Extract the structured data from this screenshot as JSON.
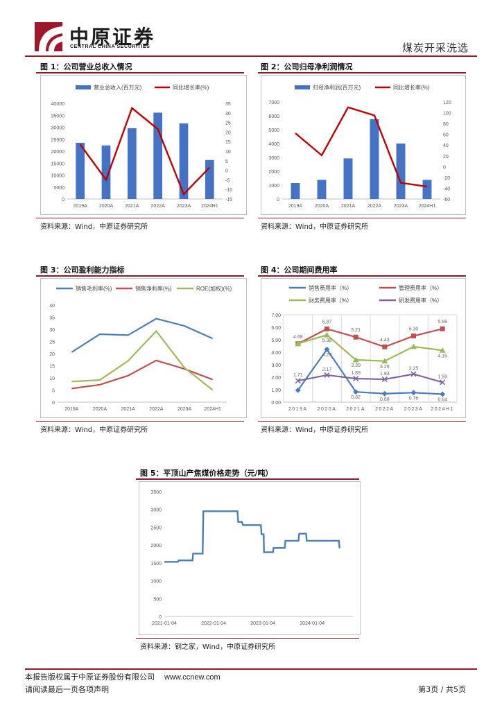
{
  "header": {
    "brand_cn": "中原证券",
    "brand_en": "CENTRAL CHINA SECURITIES",
    "section": "煤炭开采洗选",
    "accent": "#a0162b"
  },
  "figures": [
    {
      "title": "图 1：公司营业总收入情况",
      "source": "资料来源：Wind，中原证券研究所"
    },
    {
      "title": "图 2：公司归母净利润情况",
      "source": "资料来源：Wind，中原证券研究所"
    },
    {
      "title": "图 3：公司盈利能力指标",
      "source": "资料来源：Wind，中原证券研究所"
    },
    {
      "title": "图 4：公司期间费用率",
      "source": "资料来源：Wind，中原证券研究所"
    },
    {
      "title": "图 5：平顶山产焦煤价格走势（元/吨）",
      "source": "资料来源：钢之家，Wind，中原证券研究所"
    }
  ],
  "chart_data": [
    {
      "type": "bar",
      "categories": [
        "2019A",
        "2020A",
        "2021A",
        "2022A",
        "2023A",
        "2024H1"
      ],
      "series": [
        {
          "name": "营业总收入(百万元)",
          "axis": "left",
          "kind": "bar",
          "color": "#4472c4",
          "values": [
            23500,
            22400,
            29600,
            36100,
            31600,
            16300
          ]
        },
        {
          "name": "同比增长率(%)",
          "axis": "right",
          "kind": "line",
          "color": "#c00000",
          "values": [
            13.5,
            -5,
            32.5,
            21.5,
            -12.5,
            1.5
          ]
        }
      ],
      "ylim_left": [
        0,
        40000
      ],
      "ticks_left": [
        0,
        5000,
        10000,
        15000,
        20000,
        25000,
        30000,
        35000,
        40000
      ],
      "ylim_right": [
        -15,
        35
      ],
      "ticks_right": [
        -15,
        -10,
        -5,
        0,
        5,
        10,
        15,
        20,
        25,
        30,
        35
      ],
      "legend": "top"
    },
    {
      "type": "bar",
      "categories": [
        "2019A",
        "2020A",
        "2021A",
        "2022A",
        "2023A",
        "2024H1"
      ],
      "series": [
        {
          "name": "归母净利润(百万元)",
          "axis": "left",
          "kind": "bar",
          "color": "#4472c4",
          "values": [
            1150,
            1380,
            2930,
            5750,
            4000,
            1380
          ]
        },
        {
          "name": "同比增长率(%)",
          "axis": "right",
          "kind": "line",
          "color": "#c00000",
          "values": [
            62,
            21,
            110,
            95,
            -30,
            -37
          ]
        }
      ],
      "ylim_left": [
        0,
        7000
      ],
      "ticks_left": [
        0,
        1000,
        2000,
        3000,
        4000,
        5000,
        6000,
        7000
      ],
      "ylim_right": [
        -60,
        120
      ],
      "ticks_right": [
        -60,
        -40,
        -20,
        0,
        20,
        40,
        60,
        80,
        100,
        120
      ],
      "legend": "top"
    },
    {
      "type": "line",
      "categories": [
        "2019A",
        "2020A",
        "2021A",
        "2022A",
        "2023A",
        "2024H1"
      ],
      "series": [
        {
          "name": "销售毛利率(%)",
          "color": "#4a7ebb",
          "values": [
            20.6,
            28.0,
            27.6,
            34.4,
            31.4,
            26.2
          ]
        },
        {
          "name": "销售净利率(%)",
          "color": "#c0504d",
          "values": [
            5.6,
            7.2,
            10.9,
            17.2,
            13.7,
            9.3
          ]
        },
        {
          "name": "ROE(加权)(%)",
          "color": "#9bbb59",
          "values": [
            8.5,
            9.1,
            17.0,
            29.3,
            14.2,
            5.0
          ]
        }
      ],
      "ylim": [
        0,
        40
      ],
      "ticks": [
        0,
        5,
        10,
        15,
        20,
        25,
        30,
        35,
        40
      ],
      "legend": "top"
    },
    {
      "type": "line",
      "categories": [
        "2019A",
        "2020A",
        "2021A",
        "2022A",
        "2023A",
        "2024H1"
      ],
      "series": [
        {
          "name": "销售费用率（%）",
          "color": "#4a7ebb",
          "marker": "diamond",
          "values": [
            0.96,
            4.23,
            0.82,
            0.68,
            0.76,
            0.64
          ]
        },
        {
          "name": "管理费用率（%）",
          "color": "#c0504d",
          "marker": "square",
          "values": [
            4.68,
            5.87,
            5.21,
            4.43,
            5.3,
            5.88
          ]
        },
        {
          "name": "财务费用率（%）",
          "color": "#9bbb59",
          "marker": "triangle",
          "values": [
            4.7,
            5.38,
            3.39,
            3.29,
            4.45,
            4.15
          ]
        },
        {
          "name": "研发费用率（%）",
          "color": "#8064a2",
          "marker": "x",
          "values": [
            1.71,
            2.17,
            1.89,
            1.83,
            2.25,
            1.59
          ]
        }
      ],
      "labels": [
        {
          "text": "4.68",
          "series": 1,
          "i": 0
        },
        {
          "text": "5.87",
          "series": 1,
          "i": 1
        },
        {
          "text": "5.21",
          "series": 1,
          "i": 2
        },
        {
          "text": "4.43",
          "series": 1,
          "i": 3
        },
        {
          "text": "5.30",
          "series": 1,
          "i": 4
        },
        {
          "text": "5.88",
          "series": 1,
          "i": 5
        },
        {
          "text": "5.38",
          "series": 2,
          "i": 1
        },
        {
          "text": "3.39",
          "series": 2,
          "i": 2
        },
        {
          "text": "3.29",
          "series": 2,
          "i": 3
        },
        {
          "text": "4.15",
          "series": 2,
          "i": 5
        },
        {
          "text": "4.23",
          "series": 0,
          "i": 1
        },
        {
          "text": "0.82",
          "series": 0,
          "i": 2
        },
        {
          "text": "0.68",
          "series": 0,
          "i": 3
        },
        {
          "text": "0.76",
          "series": 0,
          "i": 4
        },
        {
          "text": "0.64",
          "series": 0,
          "i": 5
        },
        {
          "text": "1.71",
          "series": 3,
          "i": 0
        },
        {
          "text": "2.17",
          "series": 3,
          "i": 1
        },
        {
          "text": "1.89",
          "series": 3,
          "i": 2
        },
        {
          "text": "1.83",
          "series": 3,
          "i": 3
        },
        {
          "text": "2.25",
          "series": 3,
          "i": 4
        },
        {
          "text": "1.59",
          "series": 3,
          "i": 5
        }
      ],
      "ylim": [
        0,
        7
      ],
      "ticks": [
        "0.00",
        "1.00",
        "2.00",
        "3.00",
        "4.00",
        "5.00",
        "6.00",
        "7.00"
      ],
      "legend": "top"
    },
    {
      "type": "line",
      "x": [
        "2021-01-04",
        "2021-04-15",
        "2021-04-20",
        "2021-08-01",
        "2021-08-05",
        "2021-10-15",
        "2021-10-20",
        "2022-01-04",
        "2022-04-01",
        "2022-06-30",
        "2022-07-05",
        "2022-08-01",
        "2022-08-10",
        "2022-12-20",
        "2022-12-25",
        "2023-01-10",
        "2023-01-12",
        "2023-03-20",
        "2023-03-25",
        "2023-06-15",
        "2023-06-20",
        "2023-09-25",
        "2023-09-30",
        "2023-11-20",
        "2023-11-25",
        "2024-03-01",
        "2024-03-05",
        "2024-06-01",
        "2024-07-20",
        "2024-07-25"
      ],
      "y": [
        1530,
        1530,
        1570,
        1570,
        1760,
        1760,
        2950,
        2950,
        2950,
        2950,
        2650,
        2650,
        2560,
        2560,
        2300,
        2300,
        1800,
        1800,
        1920,
        1920,
        2120,
        2120,
        2320,
        2320,
        2120,
        2120,
        2120,
        2120,
        2120,
        1910
      ],
      "xticks": [
        "2021-01-04",
        "2022-01-04",
        "2023-01-04",
        "2024-01-04"
      ],
      "ylim": [
        0,
        3500
      ],
      "ticks": [
        0,
        500,
        1000,
        1500,
        2000,
        2500,
        3000,
        3500
      ],
      "color": "#4a7ebb"
    }
  ],
  "footer": {
    "copyright": "本报告版权属于中原证券股份有限公司",
    "site": "www.ccnew.com",
    "disclaimer": "请阅读最后一页各项声明",
    "page": "第3页 / 共5页"
  }
}
